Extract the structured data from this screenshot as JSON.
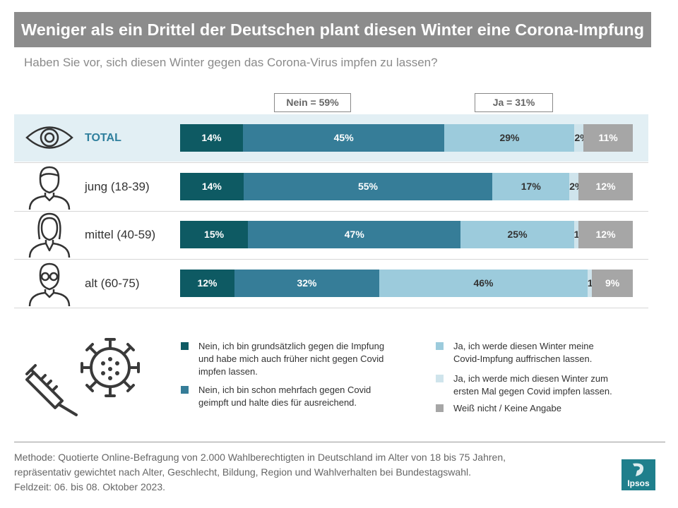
{
  "header": {
    "title": "Weniger als ein Drittel der Deutschen plant diesen Winter eine Corona-Impfung",
    "subtitle": "Haben Sie vor, sich diesen Winter gegen das Corona-Virus  impfen zu lassen?"
  },
  "chart_data": {
    "type": "bar",
    "orientation": "horizontal",
    "stacked": true,
    "normalized": true,
    "categories": [
      "TOTAL",
      "jung (18-39)",
      "mittel (40-59)",
      "alt (60-75)"
    ],
    "categories_icons": [
      "eye-icon",
      "young-person-icon",
      "middle-aged-woman-icon",
      "older-person-icon"
    ],
    "series": [
      {
        "name": "Nein, ich bin grundsätzlich gegen die Impfung und habe mich auch früher nicht gegen Covid impfen lassen.",
        "color": "#0e5a63",
        "values": [
          14,
          14,
          15,
          12
        ]
      },
      {
        "name": "Nein, ich bin schon mehrfach gegen Covid geimpft und halte dies für ausreichend.",
        "color": "#367d98",
        "values": [
          45,
          55,
          47,
          32
        ]
      },
      {
        "name": "Ja, ich werde diesen Winter meine Covid-Impfung auffrischen lassen.",
        "color": "#9ccbdc",
        "values": [
          29,
          17,
          25,
          46
        ]
      },
      {
        "name": "Ja, ich werde mich diesen Winter zum ersten Mal gegen Covid impfen lassen.",
        "color": "#cfe4ec",
        "values": [
          2,
          2,
          1,
          1
        ]
      },
      {
        "name": "Weiß nicht / Keine Angabe",
        "color": "#a6a6a6",
        "values": [
          11,
          12,
          12,
          9
        ]
      }
    ],
    "labels": [
      [
        "14%",
        "45%",
        "29%",
        "2%",
        "11%"
      ],
      [
        "14%",
        "55%",
        "17%",
        "2%",
        "12%"
      ],
      [
        "15%",
        "47%",
        "25%",
        "1%",
        "12%"
      ],
      [
        "12%",
        "32%",
        "46%",
        "1%",
        "9%"
      ]
    ],
    "legend_lines": [
      [
        "Nein, ich bin grundsätzlich gegen die Impfung",
        "und habe mich auch früher nicht gegen Covid",
        "impfen lassen."
      ],
      [
        "Nein, ich bin schon mehrfach gegen Covid",
        "geimpft und halte dies für ausreichend."
      ],
      [
        "Ja, ich werde diesen Winter meine",
        "Covid-Impfung auffrischen lassen."
      ],
      [
        "Ja, ich werde mich diesen Winter zum",
        "ersten Mal gegen Covid impfen lassen."
      ],
      [
        "Weiß nicht / Keine Angabe"
      ]
    ],
    "annotations": {
      "nein_total": "Nein = 59%",
      "ja_total": "Ja = 31%"
    }
  },
  "footnote": {
    "line1": "Methode: Quotierte Online-Befragung  von 2.000 Wahlberechtigten  in Deutschland im Alter von 18 bis 75 Jahren,",
    "line2": "repräsentativ  gewichtet  nach Alter, Geschlecht,  Bildung, Region  und Wahlverhalten  bei Bundestagswahl.",
    "line3": "Feldzeit: 06. bis 08. Oktober 2023."
  },
  "brand": {
    "name": "Ipsos",
    "color": "#1f7f8c"
  },
  "illustration": {
    "icons": [
      "syringe-icon",
      "virus-icon"
    ]
  }
}
